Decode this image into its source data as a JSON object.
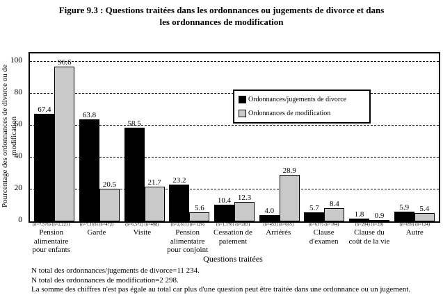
{
  "title": {
    "line1": "Figure 9.3 : Questions traitées dans les ordonnances ou jugements de divorce et dans",
    "line2": "les ordonnances de modification"
  },
  "chart_data": {
    "type": "bar",
    "title": "Questions traitées dans les ordonnances ou jugements de divorce et dans les ordonnances de modification",
    "categories": [
      "Pension alimentaire pour enfants",
      "Garde",
      "Visite",
      "Pension alimentaire pour conjoint",
      "Cessation de paiement",
      "Arriérés",
      "Clause d'examen",
      "Clause du coût de la vie",
      "Autre"
    ],
    "n_labels": [
      "(n=7,576) (n=2,221)",
      "(n=7,165) (n=472)",
      "(n=6,572) (n=498)",
      "(n=2,611) (n=129)",
      "(n=1,170) (n=283)",
      "(n=453) (n=665)",
      "(n=637) (n=194)",
      "(n=204) (n=20)",
      "(n=659) (n=124)"
    ],
    "series": [
      {
        "name": "Ordonnances/jugements de divorce",
        "color": "#000000",
        "values": [
          67.4,
          63.8,
          58.5,
          23.2,
          10.4,
          4.0,
          5.7,
          1.8,
          5.9
        ]
      },
      {
        "name": "Ordonnances de modification",
        "color": "#c9c9c9",
        "values": [
          96.6,
          20.5,
          21.7,
          5.6,
          12.3,
          28.9,
          8.4,
          0.9,
          5.4
        ]
      }
    ],
    "xlabel": "Questions traitées",
    "ylabel": "Pourcentage des ordonnances de divorce ou de modification",
    "ylim": [
      0,
      105
    ],
    "yticks": [
      0,
      20,
      40,
      60,
      80,
      100
    ],
    "grid": "dashed-horizontal",
    "legend_position": "inside-upper-right"
  },
  "footnotes": [
    "N total des ordonnances/jugements de divorce=11 234.",
    "N total des ordonnances de modification=2 298.",
    "La somme des chiffres n'est pas égale au total car plus d'une question peut être traitée dans une ordonnance ou un jugement."
  ]
}
